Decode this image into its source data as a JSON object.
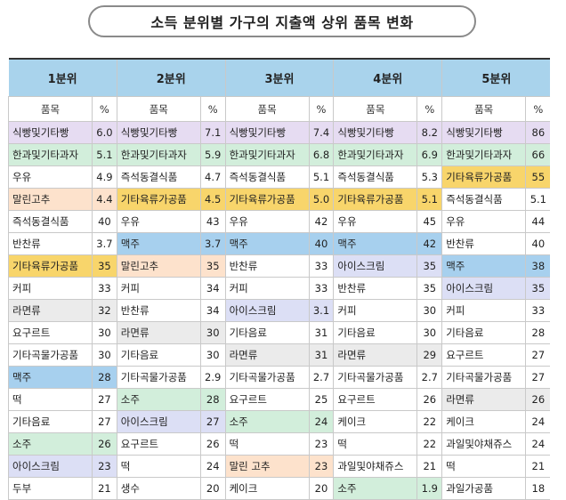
{
  "title": "소득 분위별 가구의 지출액 상위 품목 변화",
  "subheader": {
    "item": "품목",
    "pct": "%"
  },
  "colors": {
    "header": "#a9d3ec",
    "purple": "#e6dcf2",
    "green": "#d2eedb",
    "orange": "#fde2cc",
    "yellow": "#f8d56b",
    "blue": "#a7d0ee",
    "lavender": "#dcdff5",
    "gray": "#ebebeb"
  },
  "quintiles": [
    {
      "label": "1분위",
      "rows": [
        {
          "item": "식빵및기타빵",
          "pct": "6.0",
          "hl": "purple"
        },
        {
          "item": "한과및기타과자",
          "pct": "5.1",
          "hl": "green"
        },
        {
          "item": "우유",
          "pct": "4.9",
          "hl": ""
        },
        {
          "item": "말린고추",
          "pct": "4.4",
          "hl": "orange"
        },
        {
          "item": "즉석동결식품",
          "pct": "40",
          "hl": ""
        },
        {
          "item": "반찬류",
          "pct": "3.7",
          "hl": ""
        },
        {
          "item": "기타육류가공품",
          "pct": "35",
          "hl": "yellow"
        },
        {
          "item": "커피",
          "pct": "33",
          "hl": ""
        },
        {
          "item": "라면류",
          "pct": "32",
          "hl": "gray"
        },
        {
          "item": "요구르트",
          "pct": "30",
          "hl": ""
        },
        {
          "item": "기타곡물가공품",
          "pct": "30",
          "hl": ""
        },
        {
          "item": "맥주",
          "pct": "28",
          "hl": "blue"
        },
        {
          "item": "떡",
          "pct": "27",
          "hl": ""
        },
        {
          "item": "기타음료",
          "pct": "27",
          "hl": ""
        },
        {
          "item": "소주",
          "pct": "26",
          "hl": "green"
        },
        {
          "item": "아이스크림",
          "pct": "23",
          "hl": "lavender"
        },
        {
          "item": "두부",
          "pct": "21",
          "hl": ""
        }
      ]
    },
    {
      "label": "2분위",
      "rows": [
        {
          "item": "식빵및기타빵",
          "pct": "7.1",
          "hl": "purple"
        },
        {
          "item": "한과및기타과자",
          "pct": "5.9",
          "hl": "green"
        },
        {
          "item": "즉석동결식품",
          "pct": "4.7",
          "hl": ""
        },
        {
          "item": "기타육류가공품",
          "pct": "4.5",
          "hl": "yellow"
        },
        {
          "item": "우유",
          "pct": "43",
          "hl": ""
        },
        {
          "item": "맥주",
          "pct": "3.7",
          "hl": "blue"
        },
        {
          "item": "말린고추",
          "pct": "35",
          "hl": "orange"
        },
        {
          "item": "커피",
          "pct": "34",
          "hl": ""
        },
        {
          "item": "반찬류",
          "pct": "34",
          "hl": ""
        },
        {
          "item": "라면류",
          "pct": "30",
          "hl": "gray"
        },
        {
          "item": "기타음료",
          "pct": "30",
          "hl": ""
        },
        {
          "item": "기타곡물가공품",
          "pct": "2.9",
          "hl": ""
        },
        {
          "item": "소주",
          "pct": "28",
          "hl": "green"
        },
        {
          "item": "아이스크림",
          "pct": "27",
          "hl": "lavender"
        },
        {
          "item": "요구르트",
          "pct": "26",
          "hl": ""
        },
        {
          "item": "떡",
          "pct": "24",
          "hl": ""
        },
        {
          "item": "생수",
          "pct": "20",
          "hl": ""
        }
      ]
    },
    {
      "label": "3분위",
      "rows": [
        {
          "item": "식빵및기타빵",
          "pct": "7.4",
          "hl": "purple"
        },
        {
          "item": "한과및기타과자",
          "pct": "6.8",
          "hl": "green"
        },
        {
          "item": "즉석동결식품",
          "pct": "5.1",
          "hl": ""
        },
        {
          "item": "기타육류가공품",
          "pct": "5.0",
          "hl": "yellow"
        },
        {
          "item": "우유",
          "pct": "42",
          "hl": ""
        },
        {
          "item": "맥주",
          "pct": "40",
          "hl": "blue"
        },
        {
          "item": "반찬류",
          "pct": "33",
          "hl": ""
        },
        {
          "item": "커피",
          "pct": "33",
          "hl": ""
        },
        {
          "item": "아이스크림",
          "pct": "3.1",
          "hl": "lavender"
        },
        {
          "item": "기타음료",
          "pct": "31",
          "hl": ""
        },
        {
          "item": "라면류",
          "pct": "31",
          "hl": "gray"
        },
        {
          "item": "기타곡물가공품",
          "pct": "2.7",
          "hl": ""
        },
        {
          "item": "요구르트",
          "pct": "25",
          "hl": ""
        },
        {
          "item": "소주",
          "pct": "24",
          "hl": "green"
        },
        {
          "item": "떡",
          "pct": "23",
          "hl": ""
        },
        {
          "item": "말린 고추",
          "pct": "23",
          "hl": "orange"
        },
        {
          "item": "케이크",
          "pct": "20",
          "hl": ""
        }
      ]
    },
    {
      "label": "4분위",
      "rows": [
        {
          "item": "식빵및기타빵",
          "pct": "8.2",
          "hl": "purple"
        },
        {
          "item": "한과및기타과자",
          "pct": "6.9",
          "hl": "green"
        },
        {
          "item": "즉석동결식품",
          "pct": "5.3",
          "hl": ""
        },
        {
          "item": "기타육류가공품",
          "pct": "5.1",
          "hl": "yellow"
        },
        {
          "item": "우유",
          "pct": "45",
          "hl": ""
        },
        {
          "item": "맥주",
          "pct": "42",
          "hl": "blue"
        },
        {
          "item": "아이스크림",
          "pct": "35",
          "hl": "lavender"
        },
        {
          "item": "반찬류",
          "pct": "35",
          "hl": ""
        },
        {
          "item": "커피",
          "pct": "30",
          "hl": ""
        },
        {
          "item": "기타음료",
          "pct": "30",
          "hl": ""
        },
        {
          "item": "라면류",
          "pct": "29",
          "hl": "gray"
        },
        {
          "item": "기타곡물가공품",
          "pct": "2.7",
          "hl": ""
        },
        {
          "item": "요구르트",
          "pct": "26",
          "hl": ""
        },
        {
          "item": "케이크",
          "pct": "22",
          "hl": ""
        },
        {
          "item": "떡",
          "pct": "22",
          "hl": ""
        },
        {
          "item": "과일및야채쥬스",
          "pct": "21",
          "hl": ""
        },
        {
          "item": "소주",
          "pct": "1.9",
          "hl": "green"
        }
      ]
    },
    {
      "label": "5분위",
      "rows": [
        {
          "item": "식빵및기타빵",
          "pct": "86",
          "hl": "purple"
        },
        {
          "item": "한과및기타과자",
          "pct": "66",
          "hl": "green"
        },
        {
          "item": "기타육류가공품",
          "pct": "55",
          "hl": "yellow"
        },
        {
          "item": "즉석동결식품",
          "pct": "5.1",
          "hl": ""
        },
        {
          "item": "우유",
          "pct": "44",
          "hl": ""
        },
        {
          "item": "반찬류",
          "pct": "40",
          "hl": ""
        },
        {
          "item": "맥주",
          "pct": "38",
          "hl": "blue"
        },
        {
          "item": "아이스크림",
          "pct": "35",
          "hl": "lavender"
        },
        {
          "item": "커피",
          "pct": "33",
          "hl": ""
        },
        {
          "item": "기타음료",
          "pct": "28",
          "hl": ""
        },
        {
          "item": "요구르트",
          "pct": "27",
          "hl": ""
        },
        {
          "item": "기타곡물가공품",
          "pct": "27",
          "hl": ""
        },
        {
          "item": "라면류",
          "pct": "26",
          "hl": "gray"
        },
        {
          "item": "케이크",
          "pct": "24",
          "hl": ""
        },
        {
          "item": "과일및야채쥬스",
          "pct": "24",
          "hl": ""
        },
        {
          "item": "떡",
          "pct": "21",
          "hl": ""
        },
        {
          "item": "과일가공품",
          "pct": "18",
          "hl": ""
        }
      ]
    }
  ]
}
